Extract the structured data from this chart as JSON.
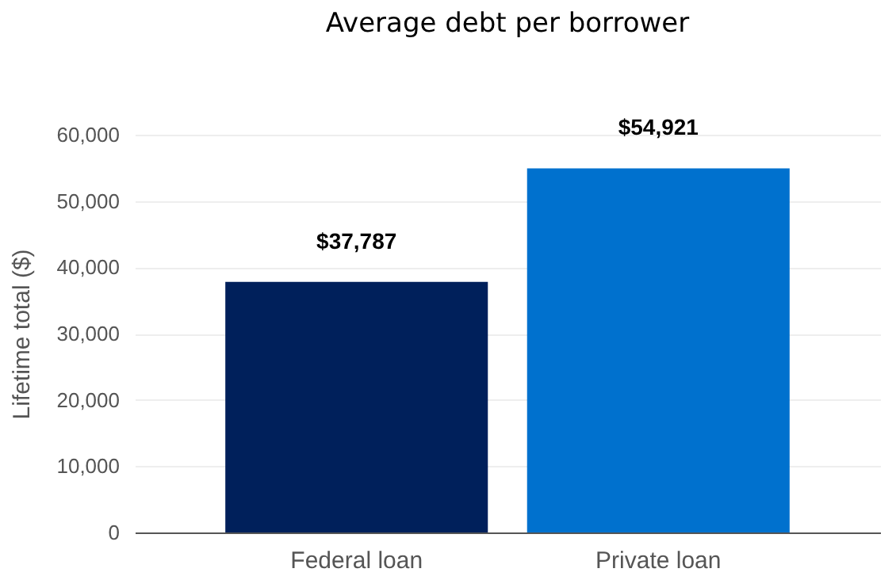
{
  "chart_data": {
    "type": "bar",
    "title": "Average debt per borrower",
    "ylabel": "Lifetime total ($)",
    "categories": [
      "Federal loan",
      "Private loan"
    ],
    "values": [
      37787,
      54921
    ],
    "colors": [
      "#00205b",
      "#0071ce"
    ],
    "value_labels": [
      "$37,787",
      "$54,921"
    ],
    "ylim": [
      0,
      60000
    ],
    "yticks": [
      0,
      {
        "value": 10000,
        "label": "10,000"
      },
      {
        "value": 20000,
        "label": "20,000"
      },
      {
        "value": 30000,
        "label": "30,000"
      },
      {
        "value": 40000,
        "label": "40,000"
      },
      {
        "value": 50000,
        "label": "50,000"
      },
      {
        "value": 60000,
        "label": "60,000"
      }
    ],
    "grid": "y"
  }
}
